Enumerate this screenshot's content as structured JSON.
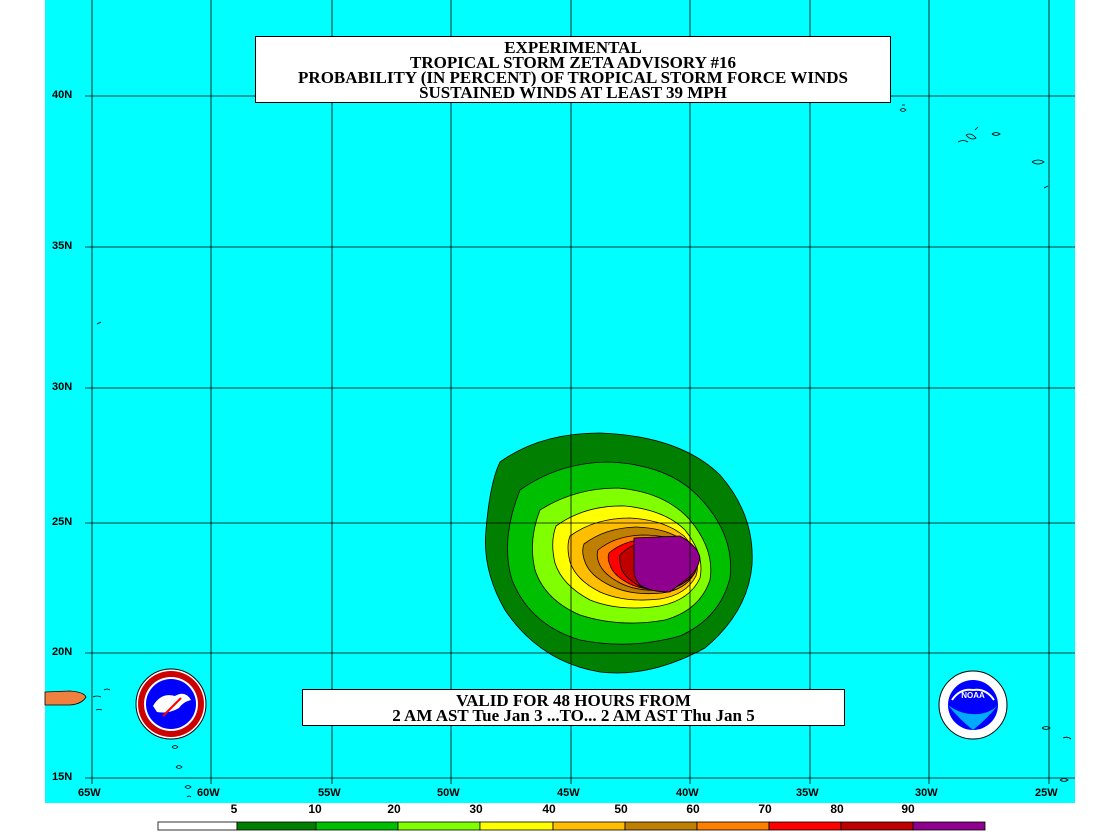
{
  "title": {
    "line1": "EXPERIMENTAL",
    "line2": "TROPICAL STORM ZETA ADVISORY #16",
    "line3": "PROBABILITY (IN PERCENT) OF TROPICAL STORM FORCE WINDS",
    "line4": "SUSTAINED WINDS AT LEAST 39 MPH"
  },
  "valid": {
    "line1": "VALID FOR 48 HOURS FROM",
    "line2": "2 AM AST Tue Jan 3 ...TO... 2 AM AST Thu Jan 5"
  },
  "lat_labels": [
    "40N",
    "35N",
    "30N",
    "25N",
    "20N",
    "15N"
  ],
  "lon_labels": [
    "65W",
    "60W",
    "55W",
    "50W",
    "45W",
    "40W",
    "35W",
    "30W",
    "25W"
  ],
  "legend": {
    "ticks": [
      "5",
      "10",
      "20",
      "30",
      "40",
      "50",
      "60",
      "70",
      "80",
      "90"
    ],
    "colors": [
      "#ffffff",
      "#007f00",
      "#00bf00",
      "#7fff00",
      "#ffff00",
      "#ffbf00",
      "#bf7f00",
      "#ff7f00",
      "#ff0000",
      "#bf0000",
      "#8f008f"
    ]
  },
  "colors": {
    "ocean": "#00ffff",
    "land": "#f08040"
  },
  "logos": [
    "nws-logo",
    "noaa-logo"
  ]
}
